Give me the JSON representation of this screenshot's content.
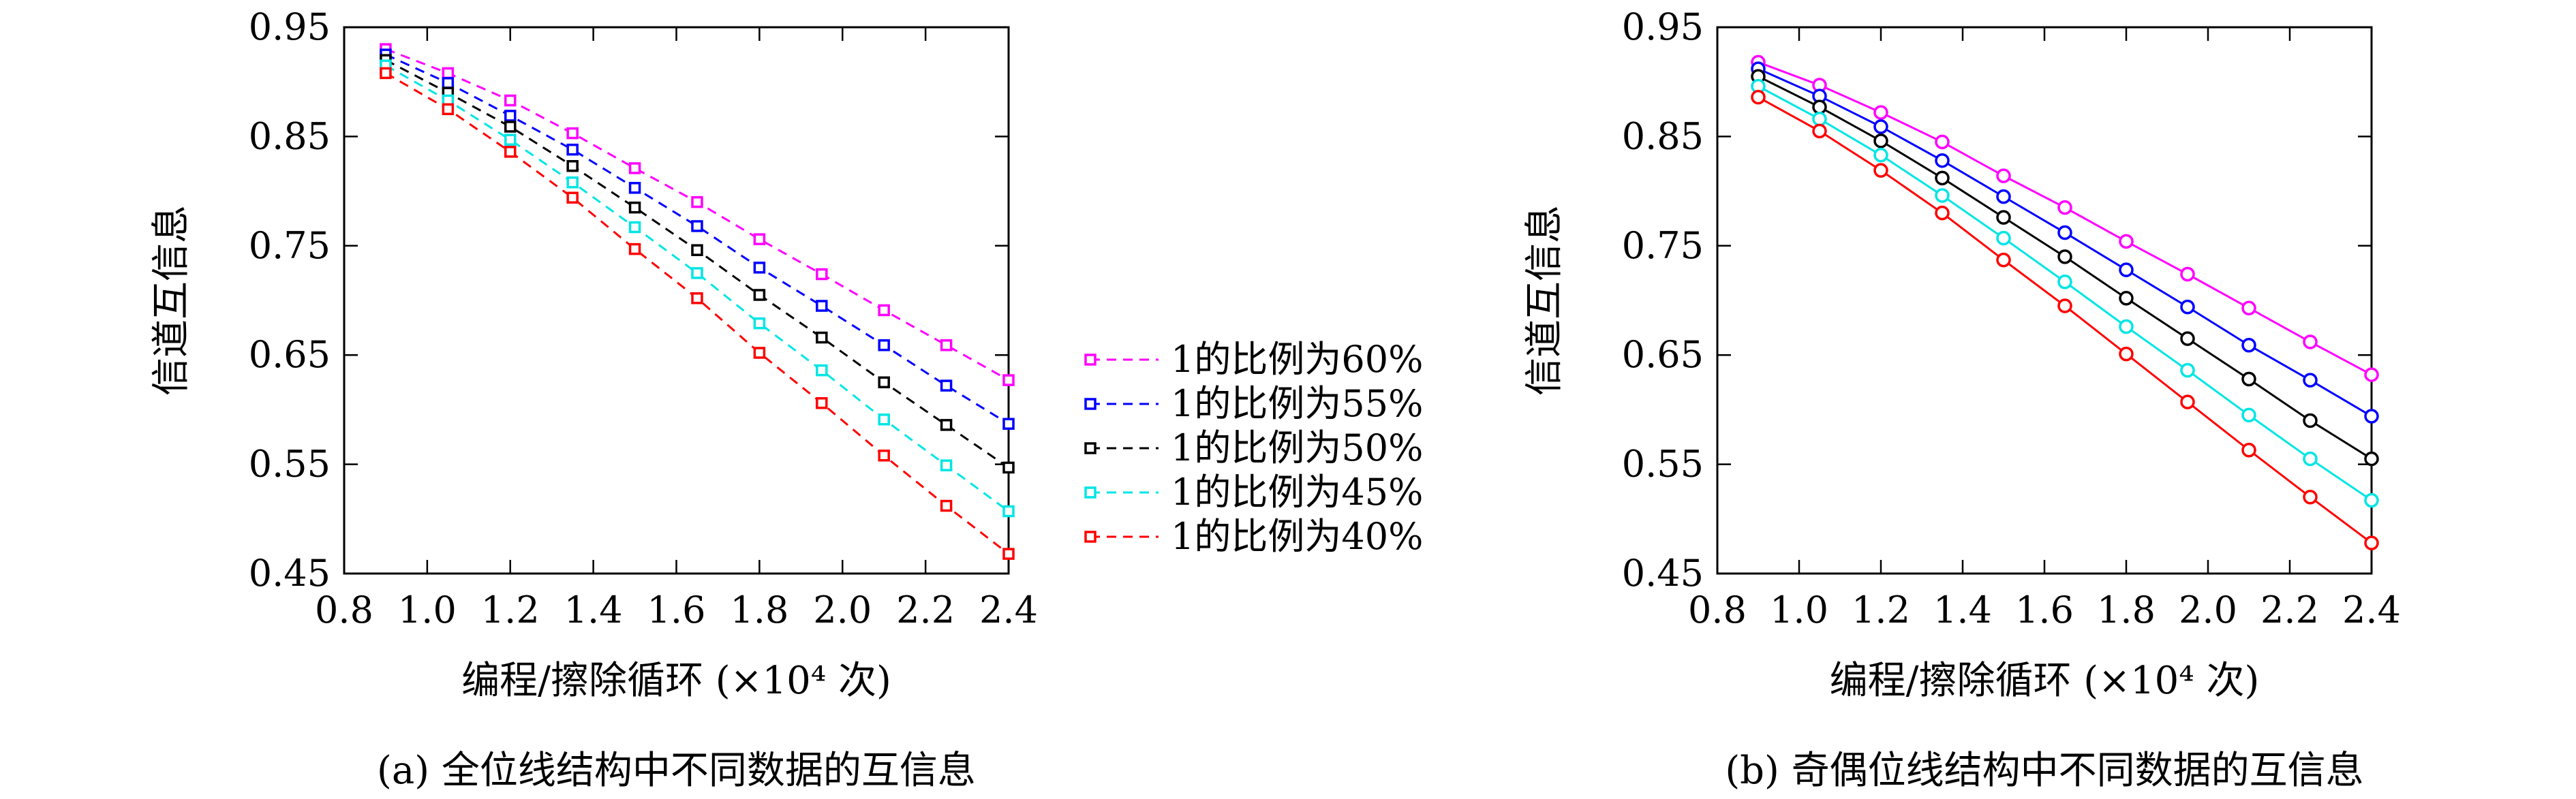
{
  "chart_data": [
    {
      "type": "line",
      "caption": "(a) 全位线结构中不同数据的互信息",
      "xlabel": "编程/擦除循环 (×10⁴ 次)",
      "ylabel": "信道互信息",
      "xlim": [
        0.8,
        2.4
      ],
      "ylim": [
        0.45,
        0.95
      ],
      "x_ticks": [
        "0.8",
        "1.0",
        "1.2",
        "1.4",
        "1.6",
        "1.8",
        "2.0",
        "2.2",
        "2.4"
      ],
      "y_ticks": [
        "0.45",
        "0.55",
        "0.65",
        "0.75",
        "0.85",
        "0.95"
      ],
      "line_style": "dashed",
      "marker": "square",
      "legend_position": "right",
      "x": [
        0.9,
        1.05,
        1.2,
        1.35,
        1.5,
        1.65,
        1.8,
        1.95,
        2.1,
        2.25,
        2.4
      ],
      "series": [
        {
          "name": "1的比例为60%",
          "color": "#ff00ff",
          "values": [
            0.93,
            0.908,
            0.883,
            0.853,
            0.821,
            0.79,
            0.756,
            0.724,
            0.691,
            0.659,
            0.627
          ]
        },
        {
          "name": "1的比例为55%",
          "color": "#0000ff",
          "values": [
            0.925,
            0.899,
            0.869,
            0.838,
            0.803,
            0.768,
            0.73,
            0.695,
            0.659,
            0.622,
            0.587
          ]
        },
        {
          "name": "1的比例为50%",
          "color": "#000000",
          "values": [
            0.92,
            0.89,
            0.859,
            0.823,
            0.785,
            0.746,
            0.705,
            0.666,
            0.625,
            0.586,
            0.547
          ]
        },
        {
          "name": "1的比例为45%",
          "color": "#00e5e5",
          "values": [
            0.915,
            0.883,
            0.847,
            0.808,
            0.767,
            0.725,
            0.679,
            0.636,
            0.591,
            0.549,
            0.507
          ]
        },
        {
          "name": "1的比例为40%",
          "color": "#ff0000",
          "values": [
            0.908,
            0.875,
            0.836,
            0.794,
            0.747,
            0.702,
            0.652,
            0.606,
            0.558,
            0.512,
            0.468
          ]
        }
      ]
    },
    {
      "type": "line",
      "caption": "(b) 奇偶位线结构中不同数据的互信息",
      "xlabel": "编程/擦除循环 (×10⁴ 次)",
      "ylabel": "信道互信息",
      "xlim": [
        0.8,
        2.4
      ],
      "ylim": [
        0.45,
        0.95
      ],
      "x_ticks": [
        "0.8",
        "1.0",
        "1.2",
        "1.4",
        "1.6",
        "1.8",
        "2.0",
        "2.2",
        "2.4"
      ],
      "y_ticks": [
        "0.45",
        "0.55",
        "0.65",
        "0.75",
        "0.85",
        "0.95"
      ],
      "line_style": "solid",
      "marker": "circle",
      "x": [
        0.9,
        1.05,
        1.2,
        1.35,
        1.5,
        1.65,
        1.8,
        1.95,
        2.1,
        2.25,
        2.4
      ],
      "series": [
        {
          "name": "1的比例为60%",
          "color": "#ff00ff",
          "values": [
            0.918,
            0.897,
            0.872,
            0.845,
            0.814,
            0.785,
            0.754,
            0.724,
            0.693,
            0.662,
            0.632
          ]
        },
        {
          "name": "1的比例为55%",
          "color": "#0000ff",
          "values": [
            0.912,
            0.887,
            0.859,
            0.828,
            0.795,
            0.762,
            0.728,
            0.694,
            0.659,
            0.627,
            0.594
          ]
        },
        {
          "name": "1的比例为50%",
          "color": "#000000",
          "values": [
            0.905,
            0.877,
            0.846,
            0.812,
            0.776,
            0.74,
            0.702,
            0.665,
            0.628,
            0.59,
            0.555
          ]
        },
        {
          "name": "1的比例为45%",
          "color": "#00e5e5",
          "values": [
            0.896,
            0.866,
            0.833,
            0.796,
            0.757,
            0.717,
            0.676,
            0.636,
            0.595,
            0.555,
            0.517
          ]
        },
        {
          "name": "1的比例为40%",
          "color": "#ff0000",
          "values": [
            0.886,
            0.855,
            0.819,
            0.78,
            0.737,
            0.695,
            0.651,
            0.607,
            0.563,
            0.52,
            0.478
          ]
        }
      ]
    }
  ]
}
